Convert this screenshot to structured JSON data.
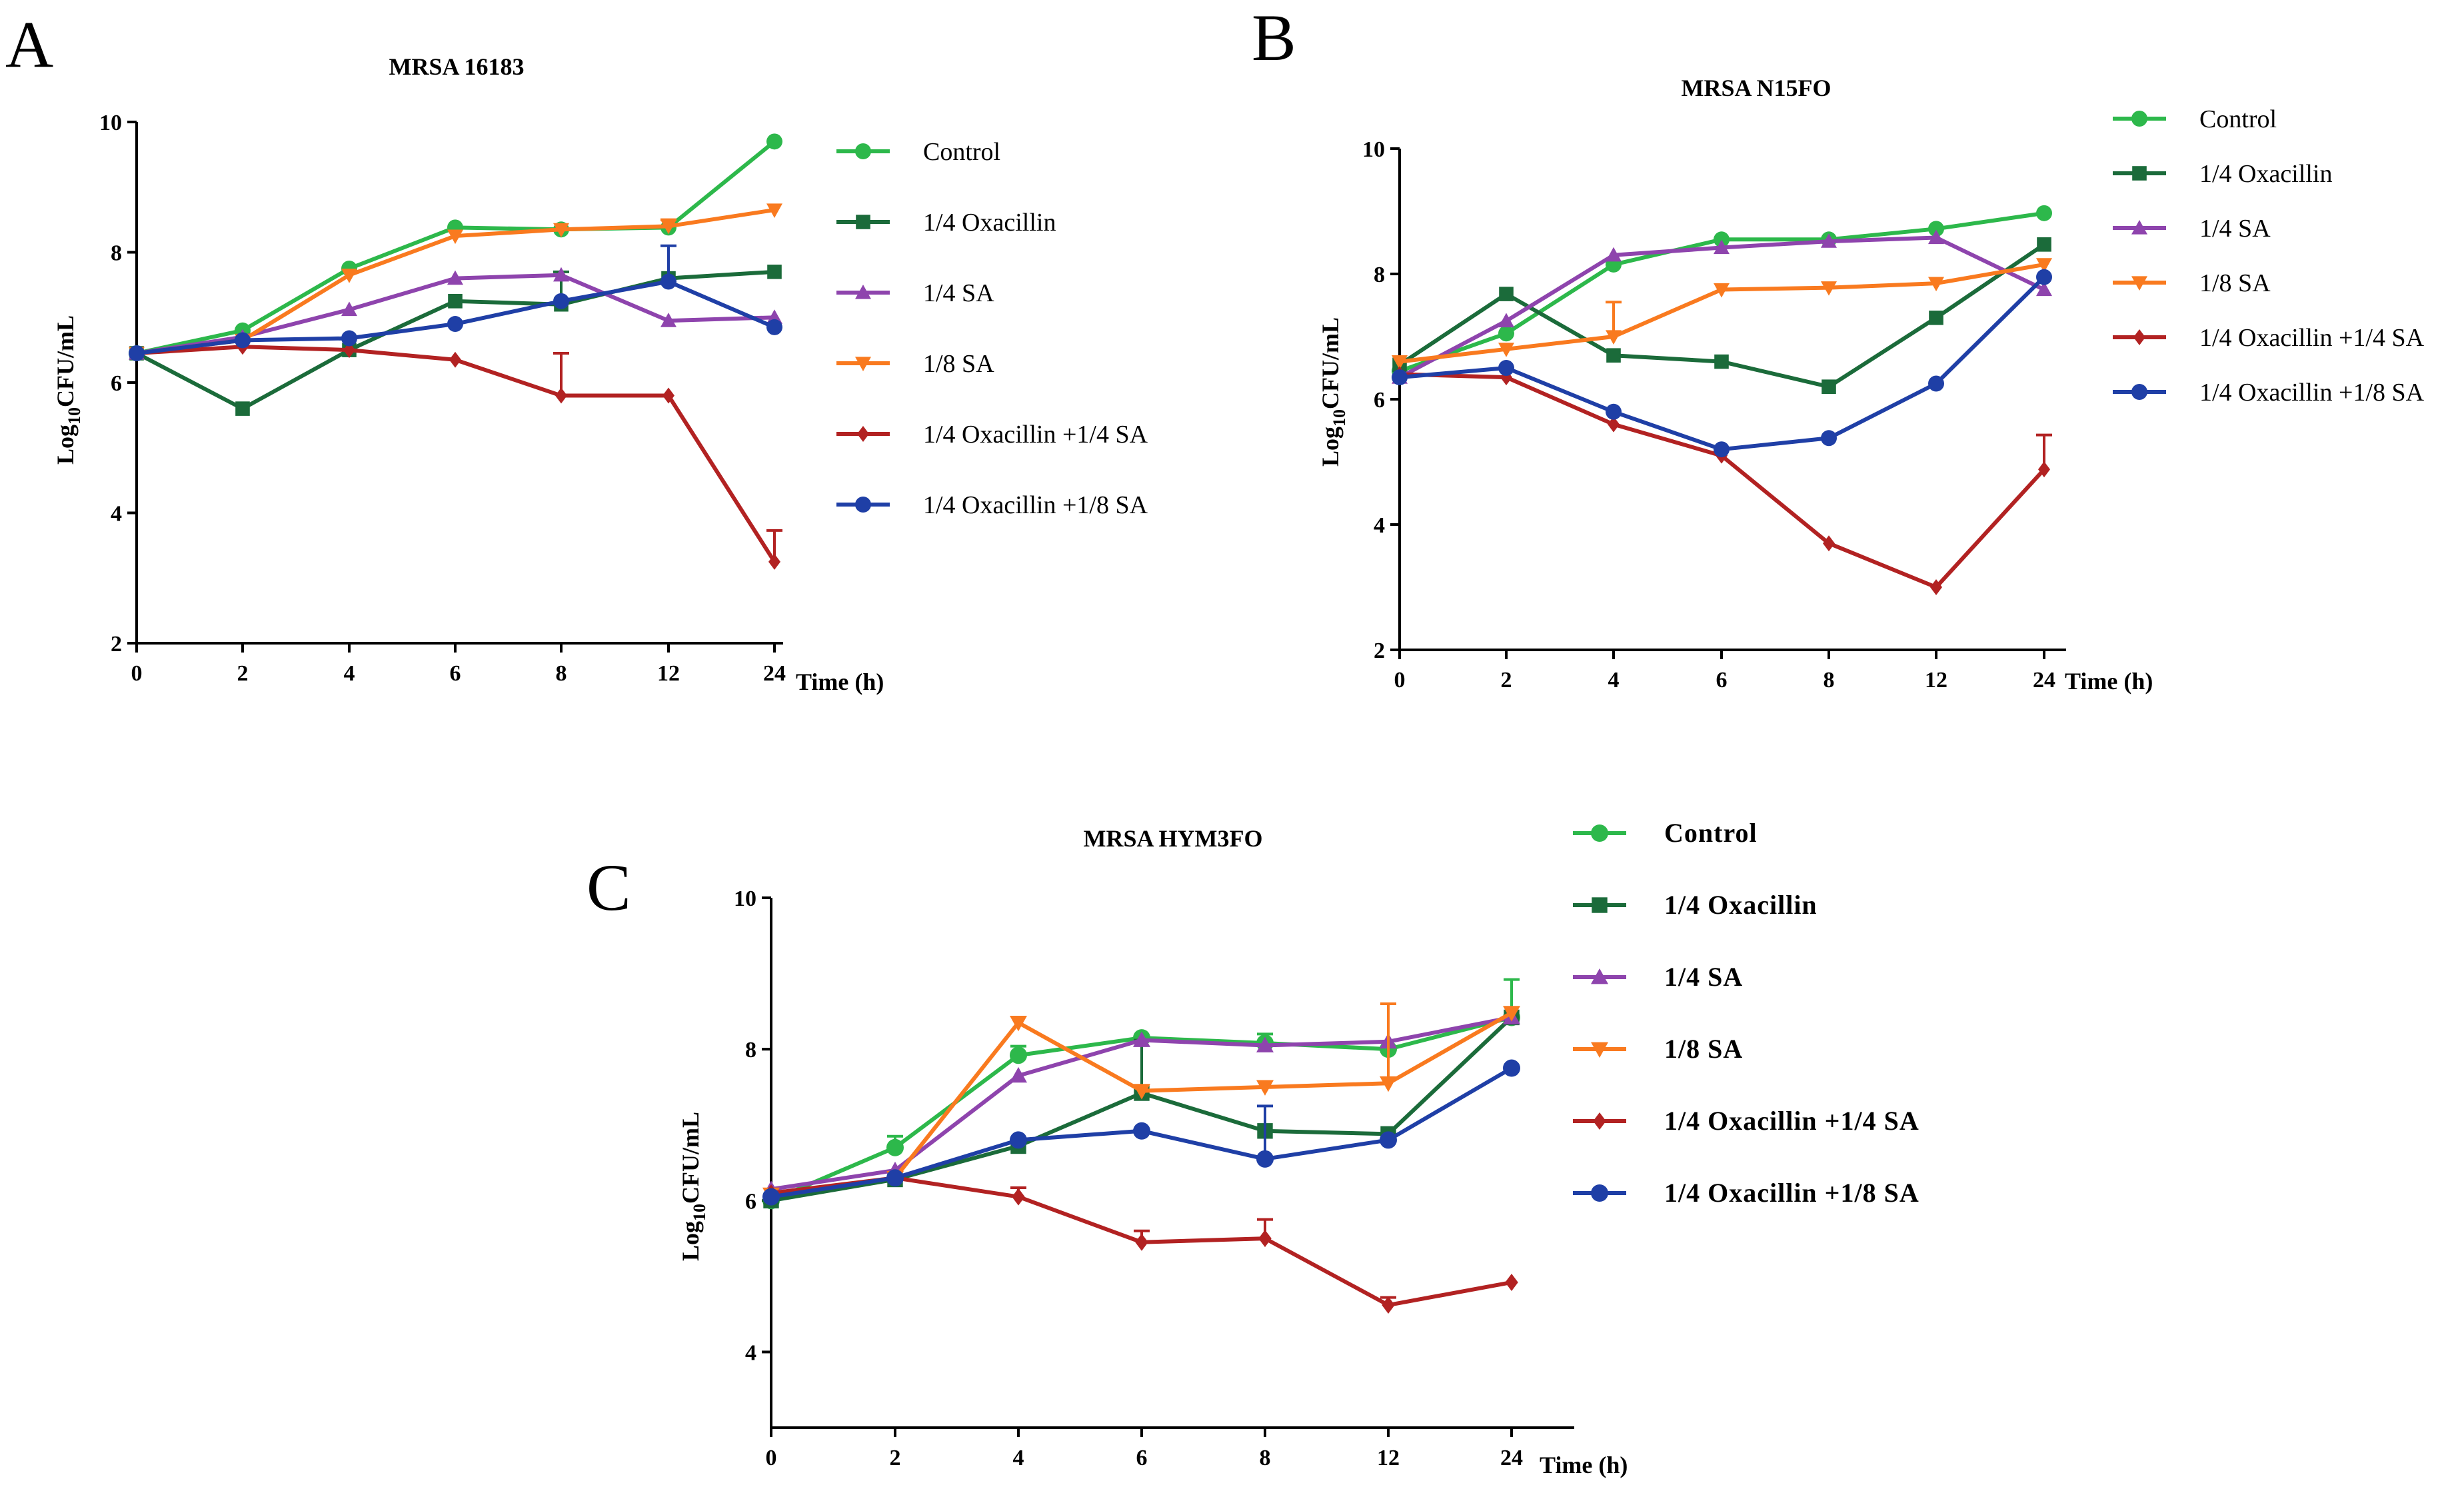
{
  "chart_data": [
    {
      "type": "line",
      "panel": "A",
      "title": "MRSA 16183",
      "xlabel": "Time (h)",
      "ylabel": "Log10CFU/mL",
      "ylabel_parts": [
        "Log",
        "10",
        "CFU/mL"
      ],
      "categories": [
        "0",
        "2",
        "4",
        "6",
        "8",
        "12",
        "24"
      ],
      "ylim": [
        2,
        10
      ],
      "yticks": [
        "2",
        "4",
        "6",
        "8",
        "10"
      ],
      "legend_position": "right",
      "series": [
        {
          "name": "Control",
          "color": "#2DB84B",
          "marker": "circle",
          "values": [
            6.45,
            6.8,
            7.75,
            8.38,
            8.35,
            8.38,
            9.7
          ],
          "errors": [
            0,
            0,
            0,
            0,
            0,
            0,
            0
          ]
        },
        {
          "name": "1/4 Oxacillin",
          "color": "#1B6B3A",
          "marker": "square",
          "values": [
            6.45,
            5.6,
            6.5,
            7.25,
            7.2,
            7.6,
            7.7
          ],
          "errors": [
            0,
            0,
            0,
            0,
            0.5,
            0,
            0
          ]
        },
        {
          "name": "1/4 SA",
          "color": "#8E44AD",
          "marker": "triangle-up",
          "values": [
            6.45,
            6.7,
            7.12,
            7.6,
            7.65,
            6.95,
            7.0
          ],
          "errors": [
            0,
            0,
            0,
            0,
            0,
            0,
            0
          ]
        },
        {
          "name": "1/8 SA",
          "color": "#F97A1F",
          "marker": "triangle-down",
          "values": [
            6.45,
            6.65,
            7.65,
            8.25,
            8.35,
            8.4,
            8.65
          ],
          "errors": [
            0,
            0,
            0,
            0,
            0,
            0.1,
            0
          ]
        },
        {
          "name": "1/4 Oxacillin +1/4 SA",
          "color": "#B22222",
          "marker": "diamond",
          "values": [
            6.45,
            6.55,
            6.5,
            6.35,
            5.8,
            5.8,
            3.25
          ],
          "errors": [
            0,
            0,
            0,
            0,
            0.65,
            0,
            0.48
          ]
        },
        {
          "name": "1/4 Oxacillin +1/8 SA",
          "color": "#1F3FA6",
          "marker": "circle",
          "values": [
            6.45,
            6.65,
            6.68,
            6.9,
            7.25,
            7.55,
            6.85
          ],
          "errors": [
            0,
            0,
            0,
            0,
            0,
            0.55,
            0
          ]
        }
      ]
    },
    {
      "type": "line",
      "panel": "B",
      "title": "MRSA N15FO",
      "xlabel": "Time (h)",
      "ylabel": "Log10CFU/mL",
      "ylabel_parts": [
        "Log",
        "10",
        "CFU/mL"
      ],
      "categories": [
        "0",
        "2",
        "4",
        "6",
        "8",
        "12",
        "24"
      ],
      "ylim": [
        2,
        10
      ],
      "yticks": [
        "2",
        "4",
        "6",
        "8",
        "10"
      ],
      "legend_position": "right",
      "series": [
        {
          "name": "Control",
          "color": "#2DB84B",
          "marker": "circle",
          "values": [
            6.45,
            7.05,
            8.15,
            8.55,
            8.55,
            8.72,
            8.97
          ],
          "errors": [
            0,
            0,
            0,
            0,
            0,
            0,
            0
          ]
        },
        {
          "name": "1/4 Oxacillin",
          "color": "#1B6B3A",
          "marker": "square",
          "values": [
            6.55,
            7.68,
            6.7,
            6.6,
            6.2,
            7.3,
            8.47
          ],
          "errors": [
            0,
            0,
            0,
            0,
            0,
            0,
            0
          ]
        },
        {
          "name": "1/4 SA",
          "color": "#8E44AD",
          "marker": "triangle-up",
          "values": [
            6.35,
            7.25,
            8.3,
            8.42,
            8.52,
            8.58,
            7.75
          ],
          "errors": [
            0,
            0,
            0,
            0,
            0,
            0,
            0
          ]
        },
        {
          "name": "1/8 SA",
          "color": "#F97A1F",
          "marker": "triangle-down",
          "values": [
            6.6,
            6.8,
            7.0,
            7.75,
            7.78,
            7.85,
            8.15
          ],
          "errors": [
            0,
            0,
            0.55,
            0,
            0,
            0,
            0
          ]
        },
        {
          "name": "1/4 Oxacillin +1/4 SA",
          "color": "#B22222",
          "marker": "diamond",
          "values": [
            6.4,
            6.35,
            5.6,
            5.1,
            3.7,
            3.0,
            4.88
          ],
          "errors": [
            0,
            0,
            0,
            0,
            0,
            0,
            0.55
          ]
        },
        {
          "name": " 1/4 Oxacillin +1/8 SA",
          "color": "#1F3FA6",
          "marker": "circle",
          "values": [
            6.35,
            6.5,
            5.8,
            5.2,
            5.38,
            6.25,
            7.95
          ],
          "errors": [
            0,
            0,
            0,
            0,
            0,
            0,
            0
          ]
        }
      ]
    },
    {
      "type": "line",
      "panel": "C",
      "title": "MRSA HYM3FO",
      "xlabel": "Time (h)",
      "ylabel": "Log10CFU/mL",
      "ylabel_parts": [
        "Log",
        "10",
        "CFU/mL"
      ],
      "categories": [
        "0",
        "2",
        "4",
        "6",
        "8",
        "12",
        "24"
      ],
      "ylim": [
        3,
        10
      ],
      "yticks": [
        "4",
        "6",
        "8",
        "10"
      ],
      "legend_position": "right",
      "series": [
        {
          "name": "Control",
          "color": "#2DB84B",
          "marker": "circle",
          "values": [
            6.0,
            6.7,
            7.92,
            8.15,
            8.08,
            8.0,
            8.42
          ],
          "errors": [
            0,
            0.15,
            0.12,
            0,
            0.12,
            0,
            0.5
          ]
        },
        {
          "name": "1/4 Oxacillin",
          "color": "#1B6B3A",
          "marker": "square",
          "values": [
            6.0,
            6.28,
            6.72,
            7.42,
            6.92,
            6.88,
            8.42
          ],
          "errors": [
            0,
            0,
            0,
            0.7,
            0,
            0,
            0
          ]
        },
        {
          "name": "1/4 SA",
          "color": "#8E44AD",
          "marker": "triangle-up",
          "values": [
            6.15,
            6.4,
            7.65,
            8.12,
            8.05,
            8.1,
            8.42
          ],
          "errors": [
            0,
            0,
            0,
            0,
            0,
            0,
            0
          ]
        },
        {
          "name": "1/8 SA",
          "color": "#F97A1F",
          "marker": "triangle-down",
          "values": [
            6.08,
            6.3,
            8.35,
            7.45,
            7.5,
            7.55,
            8.48
          ],
          "errors": [
            0,
            0,
            0,
            0,
            0,
            1.05,
            0
          ]
        },
        {
          "name": "1/4 Oxacillin +1/4 SA",
          "color": "#B22222",
          "marker": "diamond",
          "values": [
            6.1,
            6.3,
            6.05,
            5.45,
            5.5,
            4.62,
            4.92
          ],
          "errors": [
            0,
            0,
            0.12,
            0.15,
            0.25,
            0.1,
            0
          ]
        },
        {
          "name": "1/4 Oxacillin +1/8 SA",
          "color": "#1F3FA6",
          "marker": "circle",
          "values": [
            6.05,
            6.3,
            6.8,
            6.92,
            6.55,
            6.8,
            7.75
          ],
          "errors": [
            0,
            0,
            0,
            0,
            0.7,
            0,
            0
          ]
        }
      ]
    }
  ]
}
